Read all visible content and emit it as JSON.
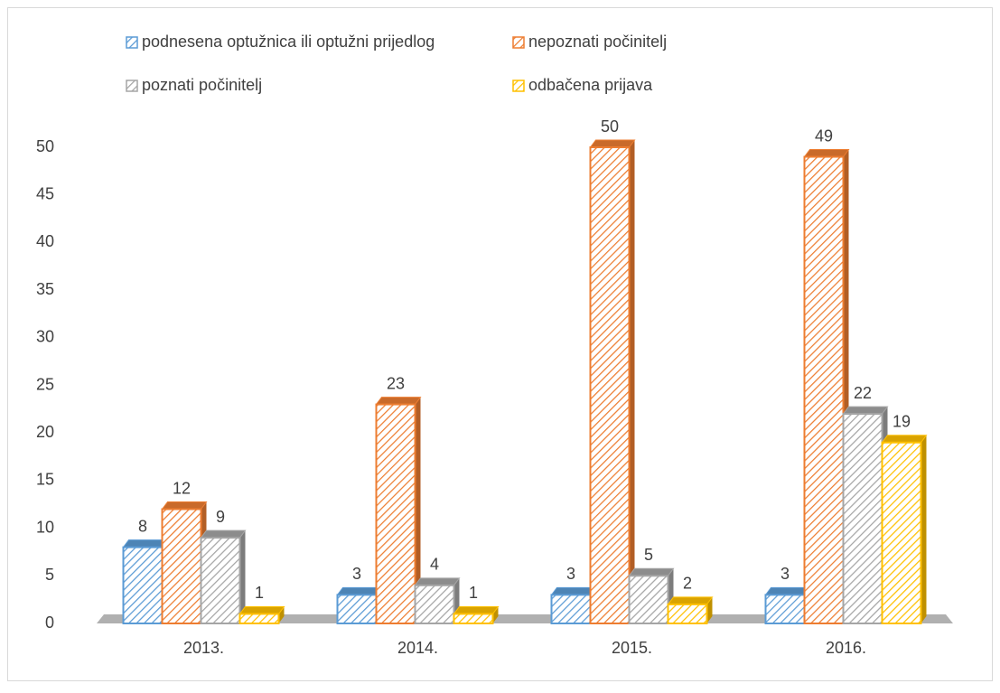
{
  "chart_data": {
    "type": "bar",
    "categories": [
      "2013.",
      "2014.",
      "2015.",
      "2016."
    ],
    "series": [
      {
        "name": "podnesena optužnica ili optužni prijedlog",
        "color": "#5b9bd5",
        "values": [
          8,
          3,
          3,
          3
        ]
      },
      {
        "name": "nepoznati počinitelj",
        "color": "#ed7d31",
        "values": [
          12,
          23,
          50,
          49
        ]
      },
      {
        "name": "poznati počinitelj",
        "color": "#a5a5a5",
        "values": [
          9,
          4,
          5,
          22
        ]
      },
      {
        "name": "odbačena prijava",
        "color": "#ffc000",
        "values": [
          1,
          1,
          2,
          19
        ]
      }
    ],
    "ylim": [
      0,
      50
    ],
    "yticks": [
      0,
      5,
      10,
      15,
      20,
      25,
      30,
      35,
      40,
      45,
      50
    ],
    "grid": false,
    "legend": "top"
  }
}
